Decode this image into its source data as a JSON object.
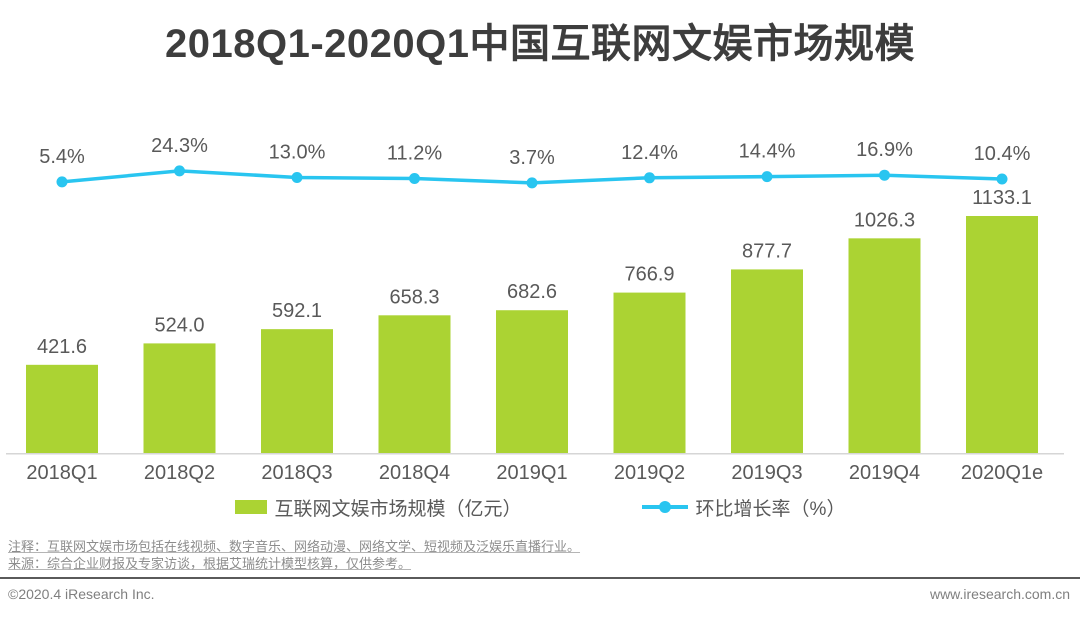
{
  "page_title": "2018Q1-2020Q1中国互联网文娱市场规模",
  "chart_data": {
    "type": "bar",
    "title": "2018Q1-2020Q1中国互联网文娱市场规模",
    "categories": [
      "2018Q1",
      "2018Q2",
      "2018Q3",
      "2018Q4",
      "2019Q1",
      "2019Q2",
      "2019Q3",
      "2019Q4",
      "2020Q1e"
    ],
    "series": [
      {
        "name": "互联网文娱市场规模（亿元）",
        "kind": "bar",
        "values": [
          421.6,
          524.0,
          592.1,
          658.3,
          682.6,
          766.9,
          877.7,
          1026.3,
          1133.1
        ],
        "color": "#abd333",
        "value_label_format": "fixed1"
      },
      {
        "name": "环比增长率（%）",
        "kind": "line",
        "values": [
          5.4,
          24.3,
          13.0,
          11.2,
          3.7,
          12.4,
          14.4,
          16.9,
          10.4
        ],
        "color": "#29c5f0",
        "value_label_format": "percent1"
      }
    ],
    "xlabel": "",
    "ylabel": "",
    "grid": false,
    "legend_position": "bottom",
    "value_labels": true
  },
  "legend": {
    "bar": {
      "label": "互联网文娱市场规模（亿元）",
      "color": "#abd333"
    },
    "line": {
      "label": "环比增长率（%）",
      "color": "#29c5f0"
    }
  },
  "notes": {
    "note_line": "注释：互联网文娱市场包括在线视频、数字音乐、网络动漫、网络文学、短视频及泛娱乐直播行业。",
    "source_line": "来源：综合企业财报及专家访谈，根据艾瑞统计模型核算，仅供参考。"
  },
  "footer": {
    "left": "©2020.4 iResearch Inc.",
    "right": "www.iresearch.com.cn"
  },
  "colors": {
    "bar_green": "#abd333",
    "line_cyan": "#29c5f0",
    "title_text": "#3d3d3d",
    "label_text": "#595959",
    "note_text": "#8c8c8c",
    "footer_text": "#7f7f7f",
    "axis_line": "#d6d6d6"
  }
}
